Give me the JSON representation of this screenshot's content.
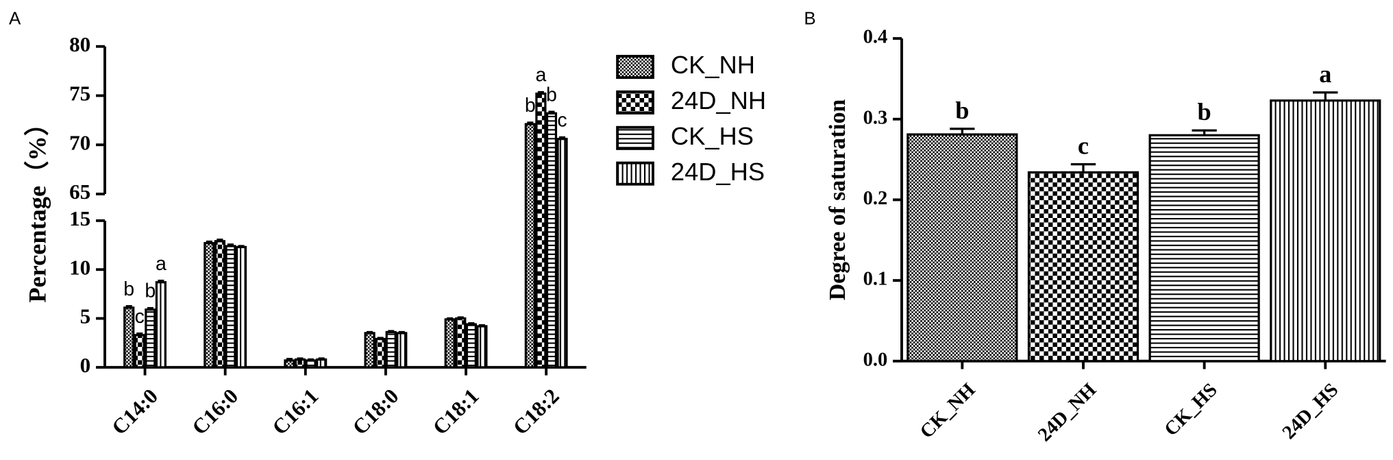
{
  "chart_data": [
    {
      "type": "bar",
      "panel": "A",
      "ylabel": "Percentage（%）",
      "categories": [
        "C14:0",
        "C16:0",
        "C16:1",
        "C18:0",
        "C18:1",
        "C18:2"
      ],
      "series": [
        {
          "name": "CK_NH",
          "color": "#000000",
          "values": [
            6.1,
            12.7,
            0.7,
            3.5,
            4.9,
            72.1
          ],
          "errors": [
            0.15,
            0.15,
            0.15,
            0.1,
            0.1,
            0.15
          ],
          "letters": [
            "b",
            null,
            null,
            null,
            null,
            "b"
          ]
        },
        {
          "name": "24D_NH",
          "color": "#000000",
          "values": [
            3.3,
            12.9,
            0.8,
            2.9,
            5.0,
            75.2
          ],
          "errors": [
            0.15,
            0.15,
            0.1,
            0.1,
            0.1,
            0.15
          ],
          "letters": [
            "c",
            null,
            null,
            null,
            null,
            "a"
          ]
        },
        {
          "name": "CK_HS",
          "color": "#000000",
          "values": [
            5.9,
            12.4,
            0.7,
            3.6,
            4.4,
            73.2
          ],
          "errors": [
            0.15,
            0.15,
            0.1,
            0.1,
            0.1,
            0.15
          ],
          "letters": [
            "b",
            null,
            null,
            null,
            null,
            "b"
          ]
        },
        {
          "name": "24D_HS",
          "color": "#000000",
          "values": [
            8.7,
            12.3,
            0.8,
            3.5,
            4.2,
            70.6
          ],
          "errors": [
            0.15,
            0.1,
            0.1,
            0.1,
            0.1,
            0.15
          ],
          "letters": [
            "a",
            null,
            null,
            null,
            null,
            "c"
          ]
        }
      ],
      "ylim": [
        0,
        80
      ],
      "ybreak": [
        15,
        65
      ],
      "yticks": [
        0,
        5,
        10,
        15,
        65,
        70,
        75,
        80
      ],
      "legend": "right"
    },
    {
      "type": "bar",
      "panel": "B",
      "ylabel": "Degree of saturation",
      "categories": [
        "CK_NH",
        "24D_NH",
        "CK_HS",
        "24D_HS"
      ],
      "values": [
        0.281,
        0.234,
        0.28,
        0.323
      ],
      "errors": [
        0.007,
        0.01,
        0.006,
        0.01
      ],
      "letters": [
        "b",
        "c",
        "b",
        "a"
      ],
      "color": "#000000",
      "ylim": [
        0,
        0.4
      ],
      "yticks": [
        {
          "value": 0,
          "label": "0.0"
        },
        0.1,
        0.2,
        0.3,
        0.4
      ]
    }
  ]
}
